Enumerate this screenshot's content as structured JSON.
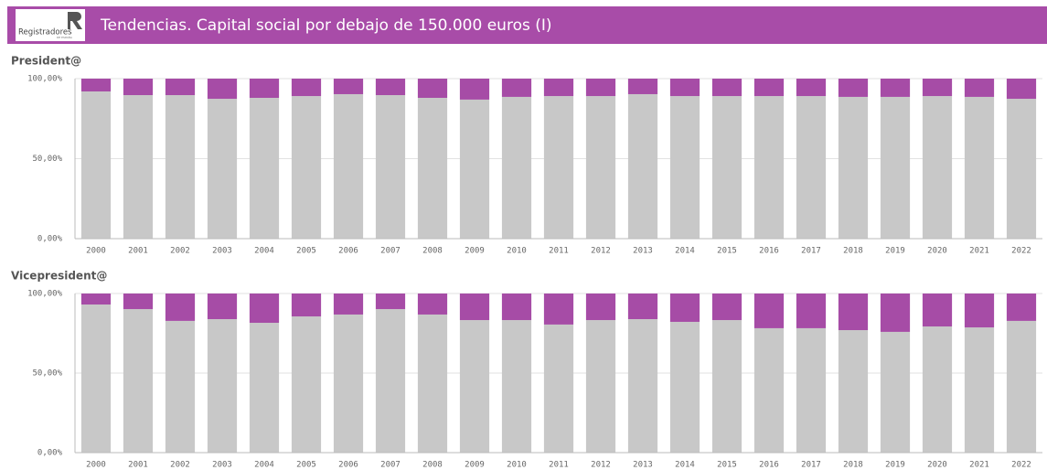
{
  "header": {
    "logo": "Registradores",
    "logo_subtitle": "DE ESPAÑA",
    "title": "Tendencias. Capital social por debajo de 150.000 euros (I)"
  },
  "chart_data": [
    {
      "type": "bar",
      "stacked": true,
      "title": "President@",
      "categories": [
        "2000",
        "2001",
        "2002",
        "2003",
        "2004",
        "2005",
        "2006",
        "2007",
        "2008",
        "2009",
        "2010",
        "2011",
        "2012",
        "2013",
        "2014",
        "2015",
        "2016",
        "2017",
        "2018",
        "2019",
        "2020",
        "2021",
        "2022"
      ],
      "series": [
        {
          "color": "#c8c8c8",
          "values": [
            92.0,
            89.7,
            89.7,
            87.4,
            88.0,
            89.1,
            90.3,
            89.7,
            88.0,
            86.9,
            88.6,
            89.1,
            89.1,
            90.3,
            89.1,
            89.1,
            89.1,
            89.1,
            88.6,
            88.6,
            89.1,
            88.6,
            87.4
          ]
        },
        {
          "color": "#a64ca6",
          "values": [
            8.0,
            10.3,
            10.3,
            12.6,
            12.0,
            10.9,
            9.7,
            10.3,
            12.0,
            13.1,
            11.4,
            10.9,
            10.9,
            9.7,
            10.9,
            10.9,
            10.9,
            10.9,
            11.4,
            11.4,
            10.9,
            11.4,
            12.6
          ]
        }
      ],
      "ylim": [
        0,
        100
      ],
      "yticks": [
        {
          "value": 0,
          "label": "0,00%"
        },
        {
          "value": 50,
          "label": "50,00%"
        },
        {
          "value": 100,
          "label": "100,00%"
        }
      ],
      "grid": true
    },
    {
      "type": "bar",
      "stacked": true,
      "title": "Vicepresident@",
      "categories": [
        "2000",
        "2001",
        "2002",
        "2003",
        "2004",
        "2005",
        "2006",
        "2007",
        "2008",
        "2009",
        "2010",
        "2011",
        "2012",
        "2013",
        "2014",
        "2015",
        "2016",
        "2017",
        "2018",
        "2019",
        "2020",
        "2021",
        "2022"
      ],
      "series": [
        {
          "color": "#c8c8c8",
          "values": [
            93.1,
            90.2,
            82.8,
            83.9,
            81.6,
            85.6,
            86.8,
            90.2,
            86.8,
            83.3,
            83.3,
            80.5,
            83.3,
            83.9,
            82.2,
            83.3,
            78.2,
            78.2,
            77.0,
            75.9,
            79.3,
            78.7,
            82.8
          ]
        },
        {
          "color": "#a64ca6",
          "values": [
            6.9,
            9.8,
            17.2,
            16.1,
            18.4,
            14.4,
            13.2,
            9.8,
            13.2,
            16.7,
            16.7,
            19.5,
            16.7,
            16.1,
            17.8,
            16.7,
            21.8,
            21.8,
            23.0,
            24.1,
            20.7,
            21.3,
            17.2
          ]
        }
      ],
      "ylim": [
        0,
        100
      ],
      "yticks": [
        {
          "value": 0,
          "label": "0,00%"
        },
        {
          "value": 50,
          "label": "50,00%"
        },
        {
          "value": 100,
          "label": "100,00%"
        }
      ],
      "grid": true
    }
  ]
}
